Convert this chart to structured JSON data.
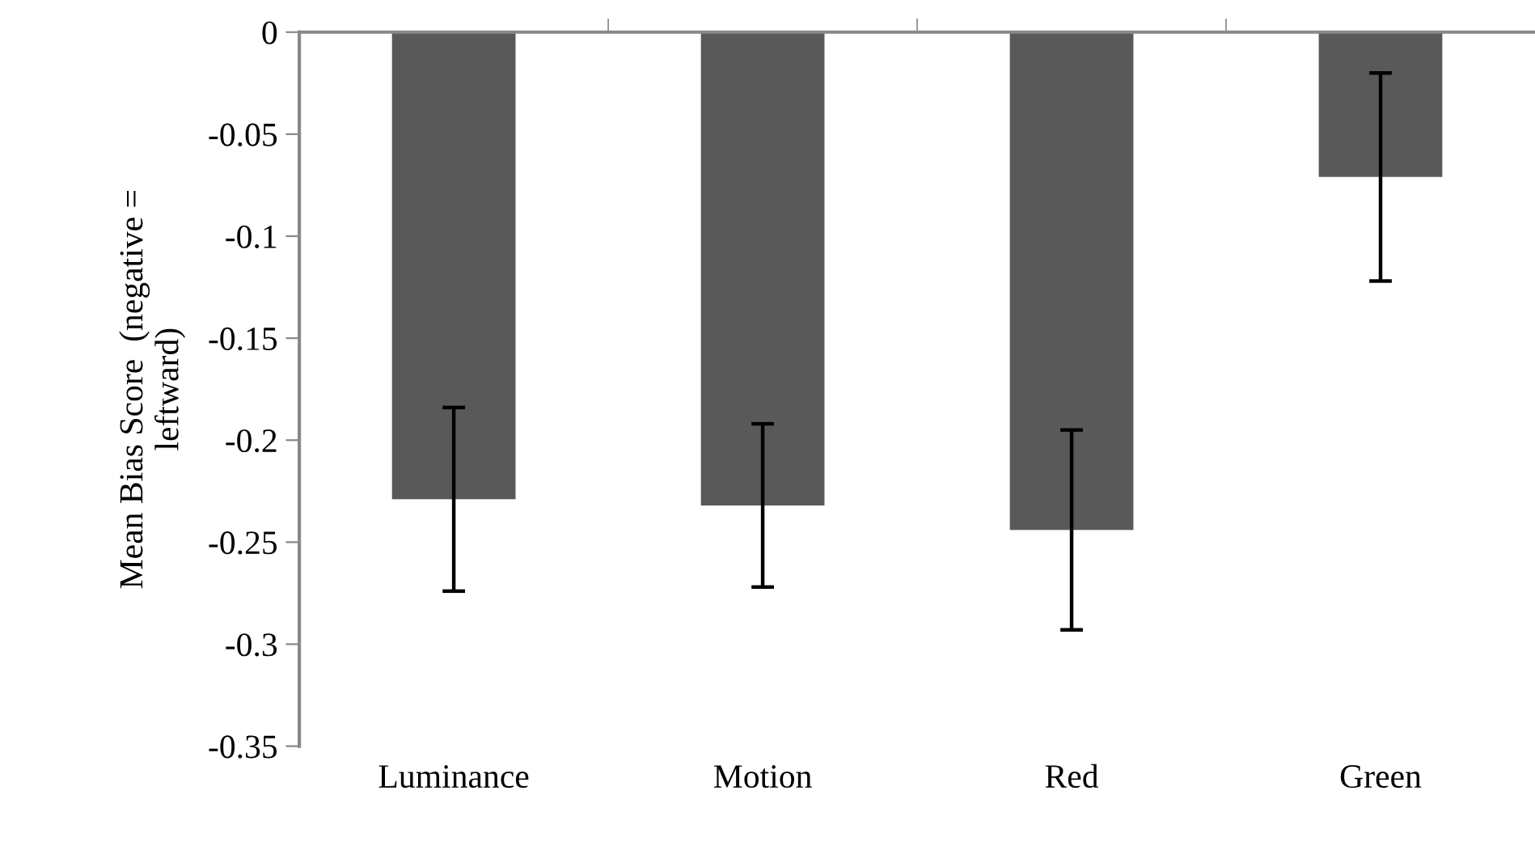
{
  "chart_data": {
    "type": "bar",
    "ylabel": "Mean Bias Score  (negative =\nleftward)",
    "categories": [
      "Luminance",
      "Motion",
      "Red",
      "Green"
    ],
    "values": [
      -0.229,
      -0.232,
      -0.244,
      -0.071
    ],
    "errors": [
      0.045,
      0.04,
      0.049,
      0.051
    ],
    "color": "#595959",
    "ylim": [
      -0.35,
      0
    ],
    "yticks": [
      0,
      -0.05,
      -0.1,
      -0.15,
      -0.2,
      -0.25,
      -0.3,
      -0.35
    ],
    "grid": false,
    "legend": false
  }
}
